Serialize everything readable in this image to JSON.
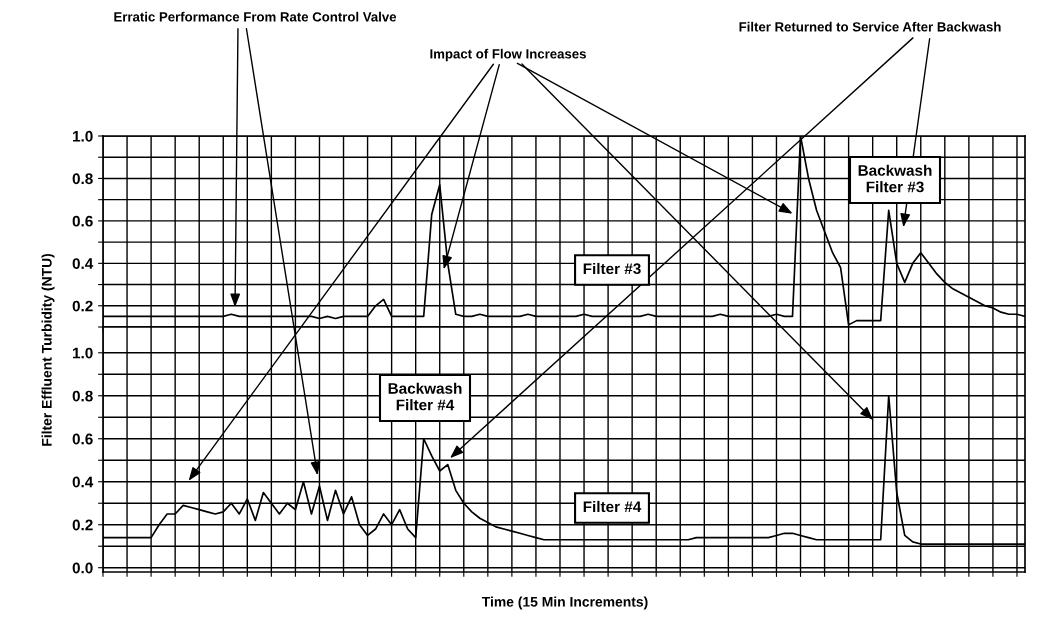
{
  "chart_data": [
    {
      "type": "line",
      "ylabel": "Filter Effluent Turbidity (NTU)",
      "annotations": [
        "Erratic Performance From Rate Control Valve",
        "Impact of Flow Increases",
        "Filter Returned to Service After Backwash",
        "Filter #3",
        "Backwash\nFilter #3"
      ],
      "categories": [
        null,
        null,
        null,
        null,
        null,
        null,
        null,
        null,
        null,
        null,
        null,
        null,
        null,
        null,
        null,
        null,
        null,
        null,
        null,
        null,
        null,
        null,
        null,
        null,
        null,
        null,
        null,
        null,
        null,
        null,
        null,
        null,
        null,
        null,
        null,
        null,
        null,
        null,
        null,
        null,
        null,
        null,
        null,
        null,
        null,
        null,
        null,
        null,
        null,
        null,
        null,
        null,
        null,
        null,
        null,
        null,
        null,
        null,
        null,
        null,
        null,
        null,
        null,
        null,
        null,
        null,
        null,
        null,
        null,
        null,
        null,
        null,
        null,
        null,
        null,
        null,
        null,
        null,
        null,
        null,
        null,
        null,
        null,
        null,
        null,
        null,
        null,
        null,
        null,
        null,
        null,
        null,
        null,
        null,
        null,
        null,
        null,
        null,
        null,
        null,
        null,
        null,
        null,
        null,
        null,
        null,
        null,
        null,
        null,
        null,
        null,
        null,
        null,
        null,
        null,
        null
      ],
      "series": [
        {
          "color": "#000000",
          "values": [
            0.15,
            0.15,
            0.15,
            0.15,
            0.15,
            0.15,
            0.15,
            0.15,
            0.15,
            0.15,
            0.15,
            0.15,
            0.15,
            0.15,
            0.15,
            0.15,
            0.16,
            0.15,
            0.15,
            0.15,
            0.15,
            0.15,
            0.15,
            0.15,
            0.15,
            0.15,
            0.15,
            0.14,
            0.15,
            0.14,
            0.15,
            0.15,
            0.15,
            0.15,
            0.2,
            0.23,
            0.15,
            0.15,
            0.15,
            0.15,
            0.15,
            0.63,
            0.77,
            0.4,
            0.16,
            0.15,
            0.15,
            0.16,
            0.15,
            0.15,
            0.15,
            0.15,
            0.15,
            0.16,
            0.15,
            0.15,
            0.15,
            0.15,
            0.15,
            0.15,
            0.16,
            0.15,
            0.15,
            0.15,
            0.15,
            0.15,
            0.15,
            0.15,
            0.16,
            0.15,
            0.15,
            0.15,
            0.15,
            0.15,
            0.15,
            0.15,
            0.15,
            0.16,
            0.15,
            0.15,
            0.15,
            0.15,
            0.15,
            0.15,
            0.16,
            0.15,
            0.15,
            1.0,
            0.8,
            0.65,
            0.55,
            0.45,
            0.38,
            0.11,
            0.13,
            0.13,
            0.13,
            0.13,
            0.65,
            0.4,
            0.31,
            0.4,
            0.45,
            0.4,
            0.35,
            0.31,
            0.28,
            0.26,
            0.24,
            0.22,
            0.2,
            0.19,
            0.17,
            0.16,
            0.16,
            0.15
          ]
        }
      ],
      "ylim": [
        0.1,
        1.0
      ],
      "yticks": [
        {
          "value": 0.1,
          "label": null
        },
        {
          "value": 0.2,
          "label": "0.2"
        },
        {
          "value": 0.3,
          "label": null
        },
        {
          "value": 0.4,
          "label": "0.4"
        },
        {
          "value": 0.5,
          "label": null
        },
        {
          "value": 0.6,
          "label": "0.6"
        },
        {
          "value": 0.7,
          "label": null
        },
        {
          "value": 0.8,
          "label": "0.8"
        },
        {
          "value": 0.9,
          "label": null
        },
        {
          "value": 1.0,
          "label": "1.0"
        }
      ],
      "grid": true,
      "tick_labels": "y"
    },
    {
      "type": "line",
      "xlabel": "Time (15 Min Increments)",
      "annotations": [
        "Backwash\nFilter #4",
        "Filter #4"
      ],
      "categories": [
        null,
        null,
        null,
        null,
        null,
        null,
        null,
        null,
        null,
        null,
        null,
        null,
        null,
        null,
        null,
        null,
        null,
        null,
        null,
        null,
        null,
        null,
        null,
        null,
        null,
        null,
        null,
        null,
        null,
        null,
        null,
        null,
        null,
        null,
        null,
        null,
        null,
        null,
        null,
        null,
        null,
        null,
        null,
        null,
        null,
        null,
        null,
        null,
        null,
        null,
        null,
        null,
        null,
        null,
        null,
        null,
        null,
        null,
        null,
        null,
        null,
        null,
        null,
        null,
        null,
        null,
        null,
        null,
        null,
        null,
        null,
        null,
        null,
        null,
        null,
        null,
        null,
        null,
        null,
        null,
        null,
        null,
        null,
        null,
        null,
        null,
        null,
        null,
        null,
        null,
        null,
        null,
        null,
        null,
        null,
        null,
        null,
        null,
        null,
        null,
        null,
        null,
        null,
        null,
        null,
        null,
        null,
        null,
        null,
        null,
        null,
        null,
        null,
        null,
        null,
        null
      ],
      "series": [
        {
          "color": "#000000",
          "values": [
            0.14,
            0.14,
            0.14,
            0.14,
            0.14,
            0.14,
            0.14,
            0.2,
            0.25,
            0.25,
            0.29,
            0.28,
            0.27,
            0.26,
            0.25,
            0.26,
            0.3,
            0.25,
            0.32,
            0.22,
            0.35,
            0.3,
            0.25,
            0.3,
            0.27,
            0.4,
            0.25,
            0.38,
            0.22,
            0.36,
            0.25,
            0.33,
            0.2,
            0.15,
            0.18,
            0.25,
            0.2,
            0.27,
            0.18,
            0.14,
            0.6,
            0.52,
            0.45,
            0.48,
            0.36,
            0.3,
            0.26,
            0.23,
            0.21,
            0.19,
            0.18,
            0.17,
            0.16,
            0.15,
            0.14,
            0.13,
            0.13,
            0.13,
            0.13,
            0.13,
            0.13,
            0.13,
            0.13,
            0.13,
            0.13,
            0.13,
            0.13,
            0.13,
            0.13,
            0.13,
            0.13,
            0.13,
            0.13,
            0.13,
            0.14,
            0.14,
            0.14,
            0.14,
            0.14,
            0.14,
            0.14,
            0.14,
            0.14,
            0.14,
            0.15,
            0.16,
            0.16,
            0.15,
            0.14,
            0.13,
            0.13,
            0.13,
            0.13,
            0.13,
            0.13,
            0.13,
            0.13,
            0.13,
            0.8,
            0.35,
            0.15,
            0.12,
            0.11,
            0.11,
            0.11,
            0.11,
            0.11,
            0.11,
            0.11,
            0.11,
            0.11,
            0.11,
            0.11,
            0.11,
            0.11,
            0.11
          ]
        }
      ],
      "ylim": [
        -0.02,
        1.12
      ],
      "yticks": [
        {
          "value": 0.0,
          "label": "0.0"
        },
        {
          "value": 0.1,
          "label": null
        },
        {
          "value": 0.2,
          "label": "0.2"
        },
        {
          "value": 0.3,
          "label": null
        },
        {
          "value": 0.4,
          "label": "0.4"
        },
        {
          "value": 0.5,
          "label": null
        },
        {
          "value": 0.6,
          "label": "0.6"
        },
        {
          "value": 0.7,
          "label": null
        },
        {
          "value": 0.8,
          "label": "0.8"
        },
        {
          "value": 0.9,
          "label": null
        },
        {
          "value": 1.0,
          "label": "1.0"
        }
      ],
      "grid": true,
      "tick_labels": "y"
    }
  ]
}
